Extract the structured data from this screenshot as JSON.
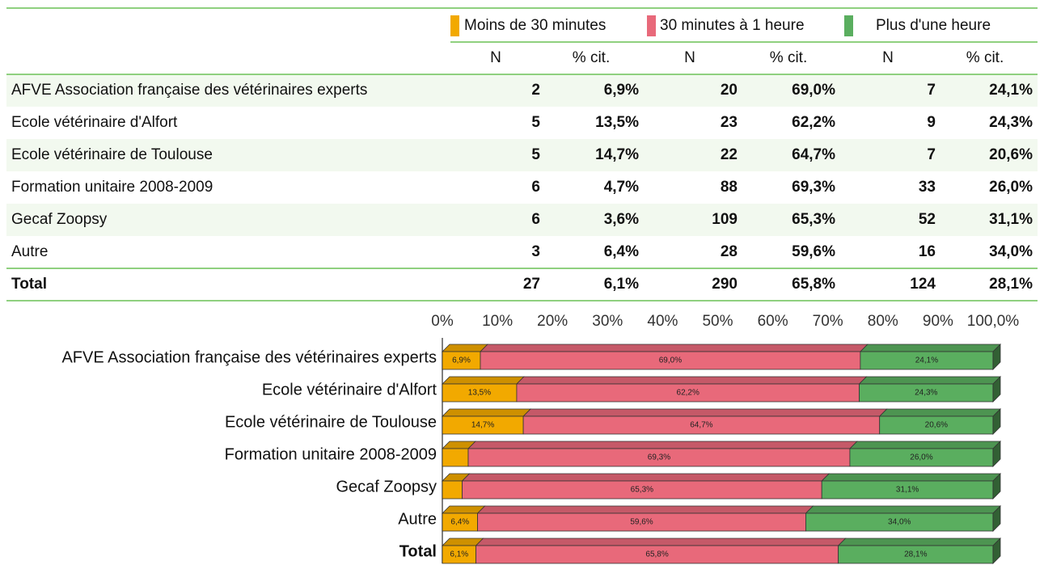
{
  "table": {
    "legend": [
      "Moins de 30 minutes",
      "30 minutes à 1 heure",
      "Plus d'une heure"
    ],
    "subheaders": [
      "N",
      "% cit.",
      "N",
      "% cit.",
      "N",
      "% cit."
    ],
    "rows": [
      {
        "label": "AFVE Association française des vétérinaires experts",
        "cells": [
          "2",
          "6,9%",
          "20",
          "69,0%",
          "7",
          "24,1%"
        ]
      },
      {
        "label": "Ecole vétérinaire d'Alfort",
        "cells": [
          "5",
          "13,5%",
          "23",
          "62,2%",
          "9",
          "24,3%"
        ]
      },
      {
        "label": "Ecole vétérinaire de Toulouse",
        "cells": [
          "5",
          "14,7%",
          "22",
          "64,7%",
          "7",
          "20,6%"
        ]
      },
      {
        "label": "Formation unitaire 2008-2009",
        "cells": [
          "6",
          "4,7%",
          "88",
          "69,3%",
          "33",
          "26,0%"
        ]
      },
      {
        "label": "Gecaf Zoopsy",
        "cells": [
          "6",
          "3,6%",
          "109",
          "65,3%",
          "52",
          "31,1%"
        ]
      },
      {
        "label": "Autre",
        "cells": [
          "3",
          "6,4%",
          "28",
          "59,6%",
          "16",
          "34,0%"
        ]
      },
      {
        "label": "Total",
        "cells": [
          "27",
          "6,1%",
          "290",
          "65,8%",
          "124",
          "28,1%"
        ]
      }
    ]
  },
  "chart_data": {
    "type": "bar",
    "orientation": "horizontal",
    "stacked": true,
    "categories": [
      "AFVE Association française des vétérinaires experts",
      "Ecole vétérinaire d'Alfort",
      "Ecole vétérinaire de Toulouse",
      "Formation unitaire 2008-2009",
      "Gecaf Zoopsy",
      "Autre",
      "Total"
    ],
    "series": [
      {
        "name": "Moins de 30 minutes",
        "color": "#f2a900",
        "values": [
          6.9,
          13.5,
          14.7,
          4.7,
          3.6,
          6.4,
          6.1
        ],
        "value_labels": [
          "6,9%",
          "13,5%",
          "14,7%",
          null,
          null,
          "6,4%",
          "6,1%"
        ]
      },
      {
        "name": "30 minutes à 1 heure",
        "color": "#e8697a",
        "values": [
          69.0,
          62.2,
          64.7,
          69.3,
          65.3,
          59.6,
          65.8
        ],
        "value_labels": [
          "69,0%",
          "62,2%",
          "64,7%",
          "69,3%",
          "65,3%",
          "59,6%",
          "65,8%"
        ]
      },
      {
        "name": "Plus d'une heure",
        "color": "#5aae5f",
        "values": [
          24.1,
          24.3,
          20.6,
          26.0,
          31.1,
          34.0,
          28.1
        ],
        "value_labels": [
          "24,1%",
          "24,3%",
          "20,6%",
          "26,0%",
          "31,1%",
          "34,0%",
          "28,1%"
        ]
      }
    ],
    "xlim": [
      0,
      100
    ],
    "xticks": [
      {
        "value": 0,
        "label": "0%"
      },
      {
        "value": 10,
        "label": "10%"
      },
      {
        "value": 20,
        "label": "20%"
      },
      {
        "value": 30,
        "label": "30%"
      },
      {
        "value": 40,
        "label": "40%"
      },
      {
        "value": 50,
        "label": "50%"
      },
      {
        "value": 60,
        "label": "60%"
      },
      {
        "value": 70,
        "label": "70%"
      },
      {
        "value": 80,
        "label": "80%"
      },
      {
        "value": 90,
        "label": "90%"
      },
      {
        "value": 100,
        "label": "100,0%"
      }
    ]
  }
}
